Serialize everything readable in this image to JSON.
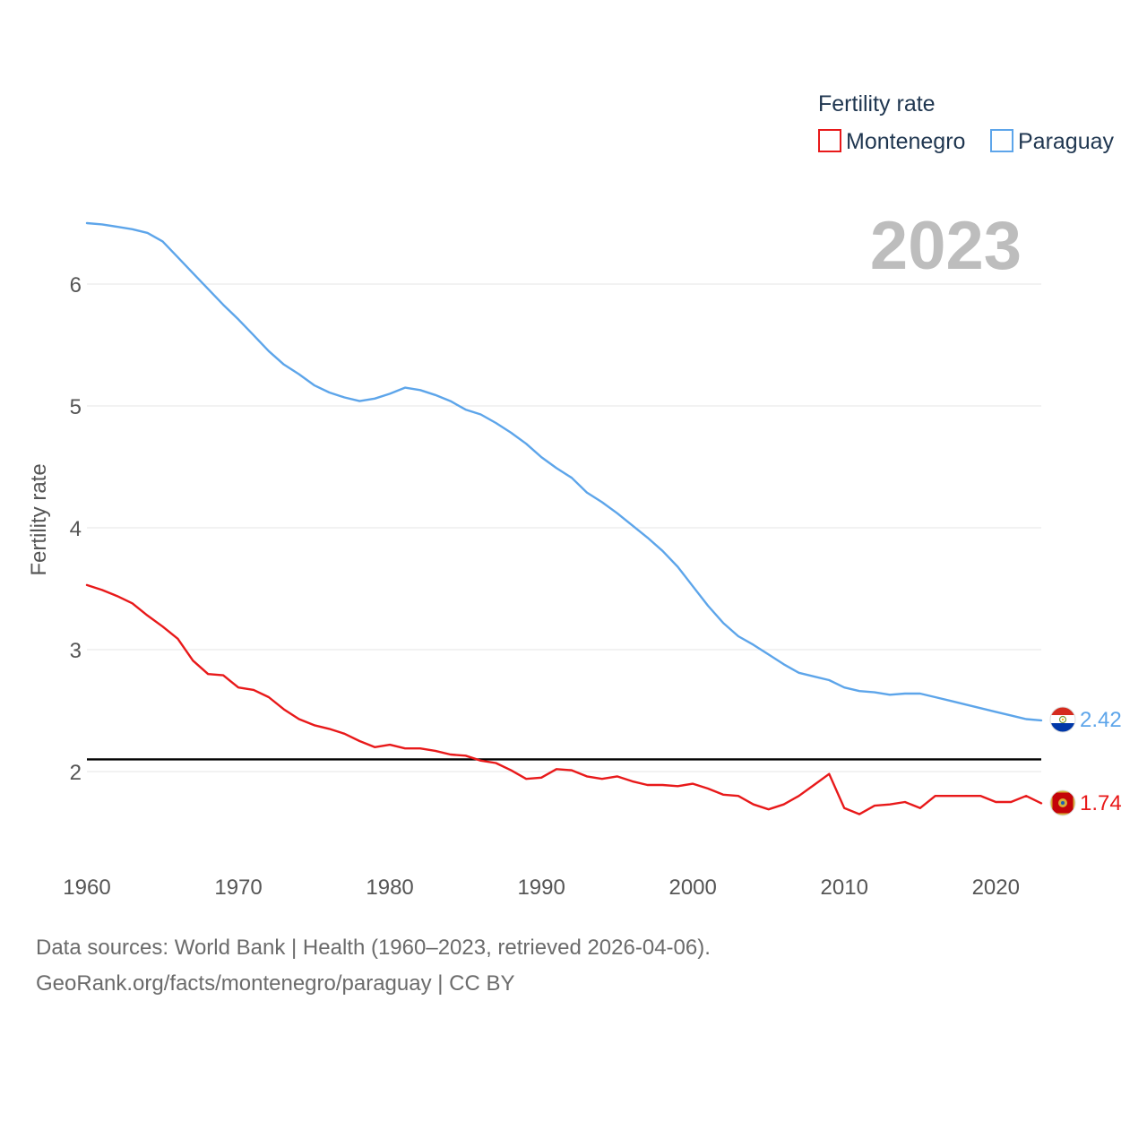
{
  "chart_data": {
    "type": "line",
    "title": "Fertility rate",
    "year_label": "2023",
    "ylabel": "Fertility rate",
    "xlabel": "",
    "xlim": [
      1960,
      2023
    ],
    "ylim": [
      1.3,
      6.6
    ],
    "x_ticks": [
      1960,
      1970,
      1980,
      1990,
      2000,
      2010,
      2020
    ],
    "y_ticks": [
      2,
      3,
      4,
      5,
      6
    ],
    "grid": true,
    "legend_position": "top-right",
    "reference_line": {
      "y": 2.1,
      "color": "#000000"
    },
    "x": [
      1960,
      1961,
      1962,
      1963,
      1964,
      1965,
      1966,
      1967,
      1968,
      1969,
      1970,
      1971,
      1972,
      1973,
      1974,
      1975,
      1976,
      1977,
      1978,
      1979,
      1980,
      1981,
      1982,
      1983,
      1984,
      1985,
      1986,
      1987,
      1988,
      1989,
      1990,
      1991,
      1992,
      1993,
      1994,
      1995,
      1996,
      1997,
      1998,
      1999,
      2000,
      2001,
      2002,
      2003,
      2004,
      2005,
      2006,
      2007,
      2008,
      2009,
      2010,
      2011,
      2012,
      2013,
      2014,
      2015,
      2016,
      2017,
      2018,
      2019,
      2020,
      2021,
      2022,
      2023
    ],
    "series": [
      {
        "name": "Montenegro",
        "color": "#e8191a",
        "end_label": "1.74",
        "flag_icon": "montenegro-flag-icon",
        "values": [
          3.53,
          3.49,
          3.44,
          3.38,
          3.28,
          3.19,
          3.09,
          2.91,
          2.8,
          2.79,
          2.69,
          2.67,
          2.61,
          2.51,
          2.43,
          2.38,
          2.35,
          2.31,
          2.25,
          2.2,
          2.22,
          2.19,
          2.19,
          2.17,
          2.14,
          2.13,
          2.09,
          2.07,
          2.01,
          1.94,
          1.95,
          2.02,
          2.01,
          1.96,
          1.94,
          1.96,
          1.92,
          1.89,
          1.89,
          1.88,
          1.9,
          1.86,
          1.81,
          1.8,
          1.73,
          1.69,
          1.73,
          1.8,
          1.89,
          1.98,
          1.7,
          1.65,
          1.72,
          1.73,
          1.75,
          1.7,
          1.8,
          1.8,
          1.8,
          1.8,
          1.75,
          1.75,
          1.8,
          1.74
        ]
      },
      {
        "name": "Paraguay",
        "color": "#5da5ea",
        "end_label": "2.42",
        "flag_icon": "paraguay-flag-icon",
        "values": [
          6.5,
          6.49,
          6.47,
          6.45,
          6.42,
          6.35,
          6.22,
          6.09,
          5.96,
          5.83,
          5.71,
          5.58,
          5.45,
          5.34,
          5.26,
          5.17,
          5.11,
          5.07,
          5.04,
          5.06,
          5.1,
          5.15,
          5.13,
          5.09,
          5.04,
          4.97,
          4.93,
          4.86,
          4.78,
          4.69,
          4.58,
          4.49,
          4.41,
          4.29,
          4.21,
          4.12,
          4.02,
          3.92,
          3.81,
          3.68,
          3.52,
          3.36,
          3.22,
          3.11,
          3.04,
          2.96,
          2.88,
          2.81,
          2.78,
          2.75,
          2.69,
          2.66,
          2.65,
          2.63,
          2.64,
          2.64,
          2.61,
          2.58,
          2.55,
          2.52,
          2.49,
          2.46,
          2.43,
          2.42
        ]
      }
    ]
  },
  "legend": {
    "title": "Fertility rate",
    "items": [
      {
        "label": "Montenegro",
        "color": "#e8191a"
      },
      {
        "label": "Paraguay",
        "color": "#5da5ea"
      }
    ]
  },
  "footer": {
    "sources": "Data sources: World Bank | Health (1960–2023, retrieved 2026-04-06).",
    "attribution": "GeoRank.org/facts/montenegro/paraguay | CC BY"
  }
}
